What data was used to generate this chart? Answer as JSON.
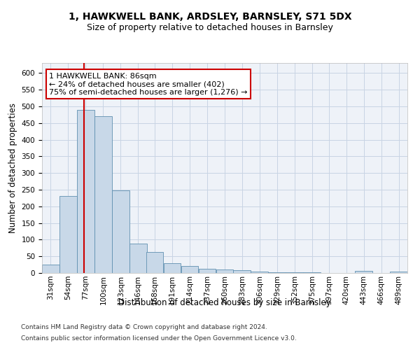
{
  "title": "1, HAWKWELL BANK, ARDSLEY, BARNSLEY, S71 5DX",
  "subtitle": "Size of property relative to detached houses in Barnsley",
  "xlabel": "Distribution of detached houses by size in Barnsley",
  "ylabel": "Number of detached properties",
  "bar_color": "#c8d8e8",
  "bar_edge_color": "#6090b0",
  "grid_color": "#c8d4e4",
  "background_color": "#eef2f8",
  "annotation_box_color": "#ffffff",
  "annotation_border_color": "#cc0000",
  "annotation_text": "1 HAWKWELL BANK: 86sqm\n← 24% of detached houses are smaller (402)\n75% of semi-detached houses are larger (1,276) →",
  "vline_color": "#cc0000",
  "vline_x": 86,
  "categories": [
    "31sqm",
    "54sqm",
    "77sqm",
    "100sqm",
    "123sqm",
    "146sqm",
    "168sqm",
    "191sqm",
    "214sqm",
    "237sqm",
    "260sqm",
    "283sqm",
    "306sqm",
    "329sqm",
    "352sqm",
    "375sqm",
    "397sqm",
    "420sqm",
    "443sqm",
    "466sqm",
    "489sqm"
  ],
  "bin_edges": [
    31,
    54,
    77,
    100,
    123,
    146,
    168,
    191,
    214,
    237,
    260,
    283,
    306,
    329,
    352,
    375,
    397,
    420,
    443,
    466,
    489
  ],
  "values": [
    25,
    230,
    490,
    470,
    247,
    88,
    62,
    30,
    22,
    12,
    11,
    9,
    4,
    3,
    3,
    3,
    1,
    1,
    6,
    1,
    4
  ],
  "ylim": [
    0,
    630
  ],
  "yticks": [
    0,
    50,
    100,
    150,
    200,
    250,
    300,
    350,
    400,
    450,
    500,
    550,
    600
  ],
  "footnote1": "Contains HM Land Registry data © Crown copyright and database right 2024.",
  "footnote2": "Contains public sector information licensed under the Open Government Licence v3.0.",
  "title_fontsize": 10,
  "subtitle_fontsize": 9,
  "xlabel_fontsize": 8.5,
  "ylabel_fontsize": 8.5,
  "tick_fontsize": 7.5,
  "annotation_fontsize": 8,
  "footnote_fontsize": 6.5
}
